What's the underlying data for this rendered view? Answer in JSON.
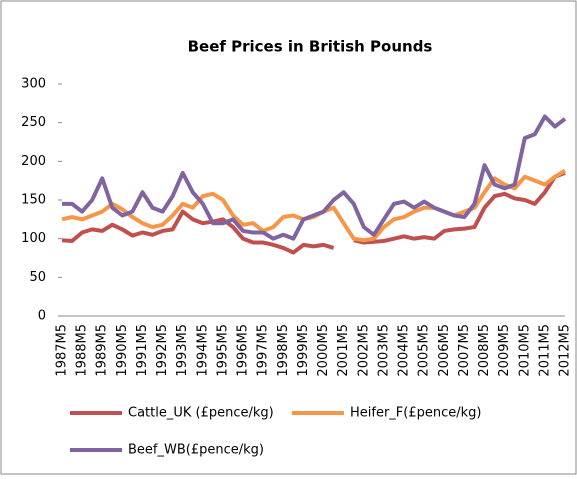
{
  "chart_data": {
    "type": "line",
    "title": "Beef Prices in British Pounds",
    "categories": [
      "1987M5",
      null,
      "1988M5",
      null,
      "1989M5",
      null,
      "1990M5",
      null,
      "1991M5",
      null,
      "1992M5",
      null,
      "1993M5",
      null,
      "1994M5",
      null,
      "1995M5",
      null,
      "1996M5",
      null,
      "1997M5",
      null,
      "1998M5",
      null,
      "1999M5",
      null,
      "2000M5",
      null,
      "2001M5",
      null,
      "2002M5",
      null,
      "2003M5",
      null,
      "2004M5",
      null,
      "2005M5",
      null,
      "2006M5",
      null,
      "2007M5",
      null,
      "2008M5",
      null,
      "2009M5",
      null,
      "2010M5",
      null,
      "2011M5",
      null,
      "2012M5"
    ],
    "series": [
      {
        "name": "Cattle_UK (£pence/kg)",
        "color": "#c0504d",
        "values": [
          98,
          97,
          108,
          112,
          110,
          118,
          112,
          104,
          108,
          105,
          110,
          112,
          135,
          125,
          120,
          122,
          125,
          115,
          100,
          95,
          95,
          92,
          88,
          82,
          92,
          90,
          92,
          88,
          null,
          98,
          95,
          96,
          97,
          100,
          103,
          100,
          102,
          100,
          110,
          112,
          113,
          115,
          140,
          155,
          158,
          152,
          150,
          145,
          160,
          180,
          185
        ]
      },
      {
        "name": "Heifer_F(£pence/kg)",
        "color": "#f79646",
        "values": [
          125,
          128,
          125,
          130,
          135,
          145,
          138,
          128,
          120,
          115,
          118,
          130,
          145,
          140,
          155,
          158,
          150,
          130,
          118,
          120,
          110,
          115,
          128,
          130,
          125,
          128,
          135,
          140,
          120,
          100,
          98,
          100,
          115,
          125,
          128,
          135,
          140,
          140,
          135,
          130,
          135,
          140,
          160,
          178,
          170,
          165,
          180,
          175,
          170,
          180,
          188
        ]
      },
      {
        "name": "Beef_WB(£pence/kg)",
        "color": "#8064a2",
        "values": [
          145,
          145,
          135,
          150,
          178,
          140,
          130,
          135,
          160,
          140,
          135,
          155,
          185,
          160,
          145,
          120,
          120,
          125,
          110,
          108,
          108,
          100,
          105,
          100,
          125,
          130,
          135,
          150,
          160,
          145,
          115,
          105,
          125,
          145,
          148,
          140,
          148,
          140,
          135,
          130,
          128,
          145,
          195,
          170,
          165,
          170,
          230,
          235,
          258,
          245,
          255
        ]
      }
    ],
    "ylim": [
      0,
      300
    ],
    "yticks": [
      0,
      50,
      100,
      150,
      200,
      250,
      300
    ]
  }
}
